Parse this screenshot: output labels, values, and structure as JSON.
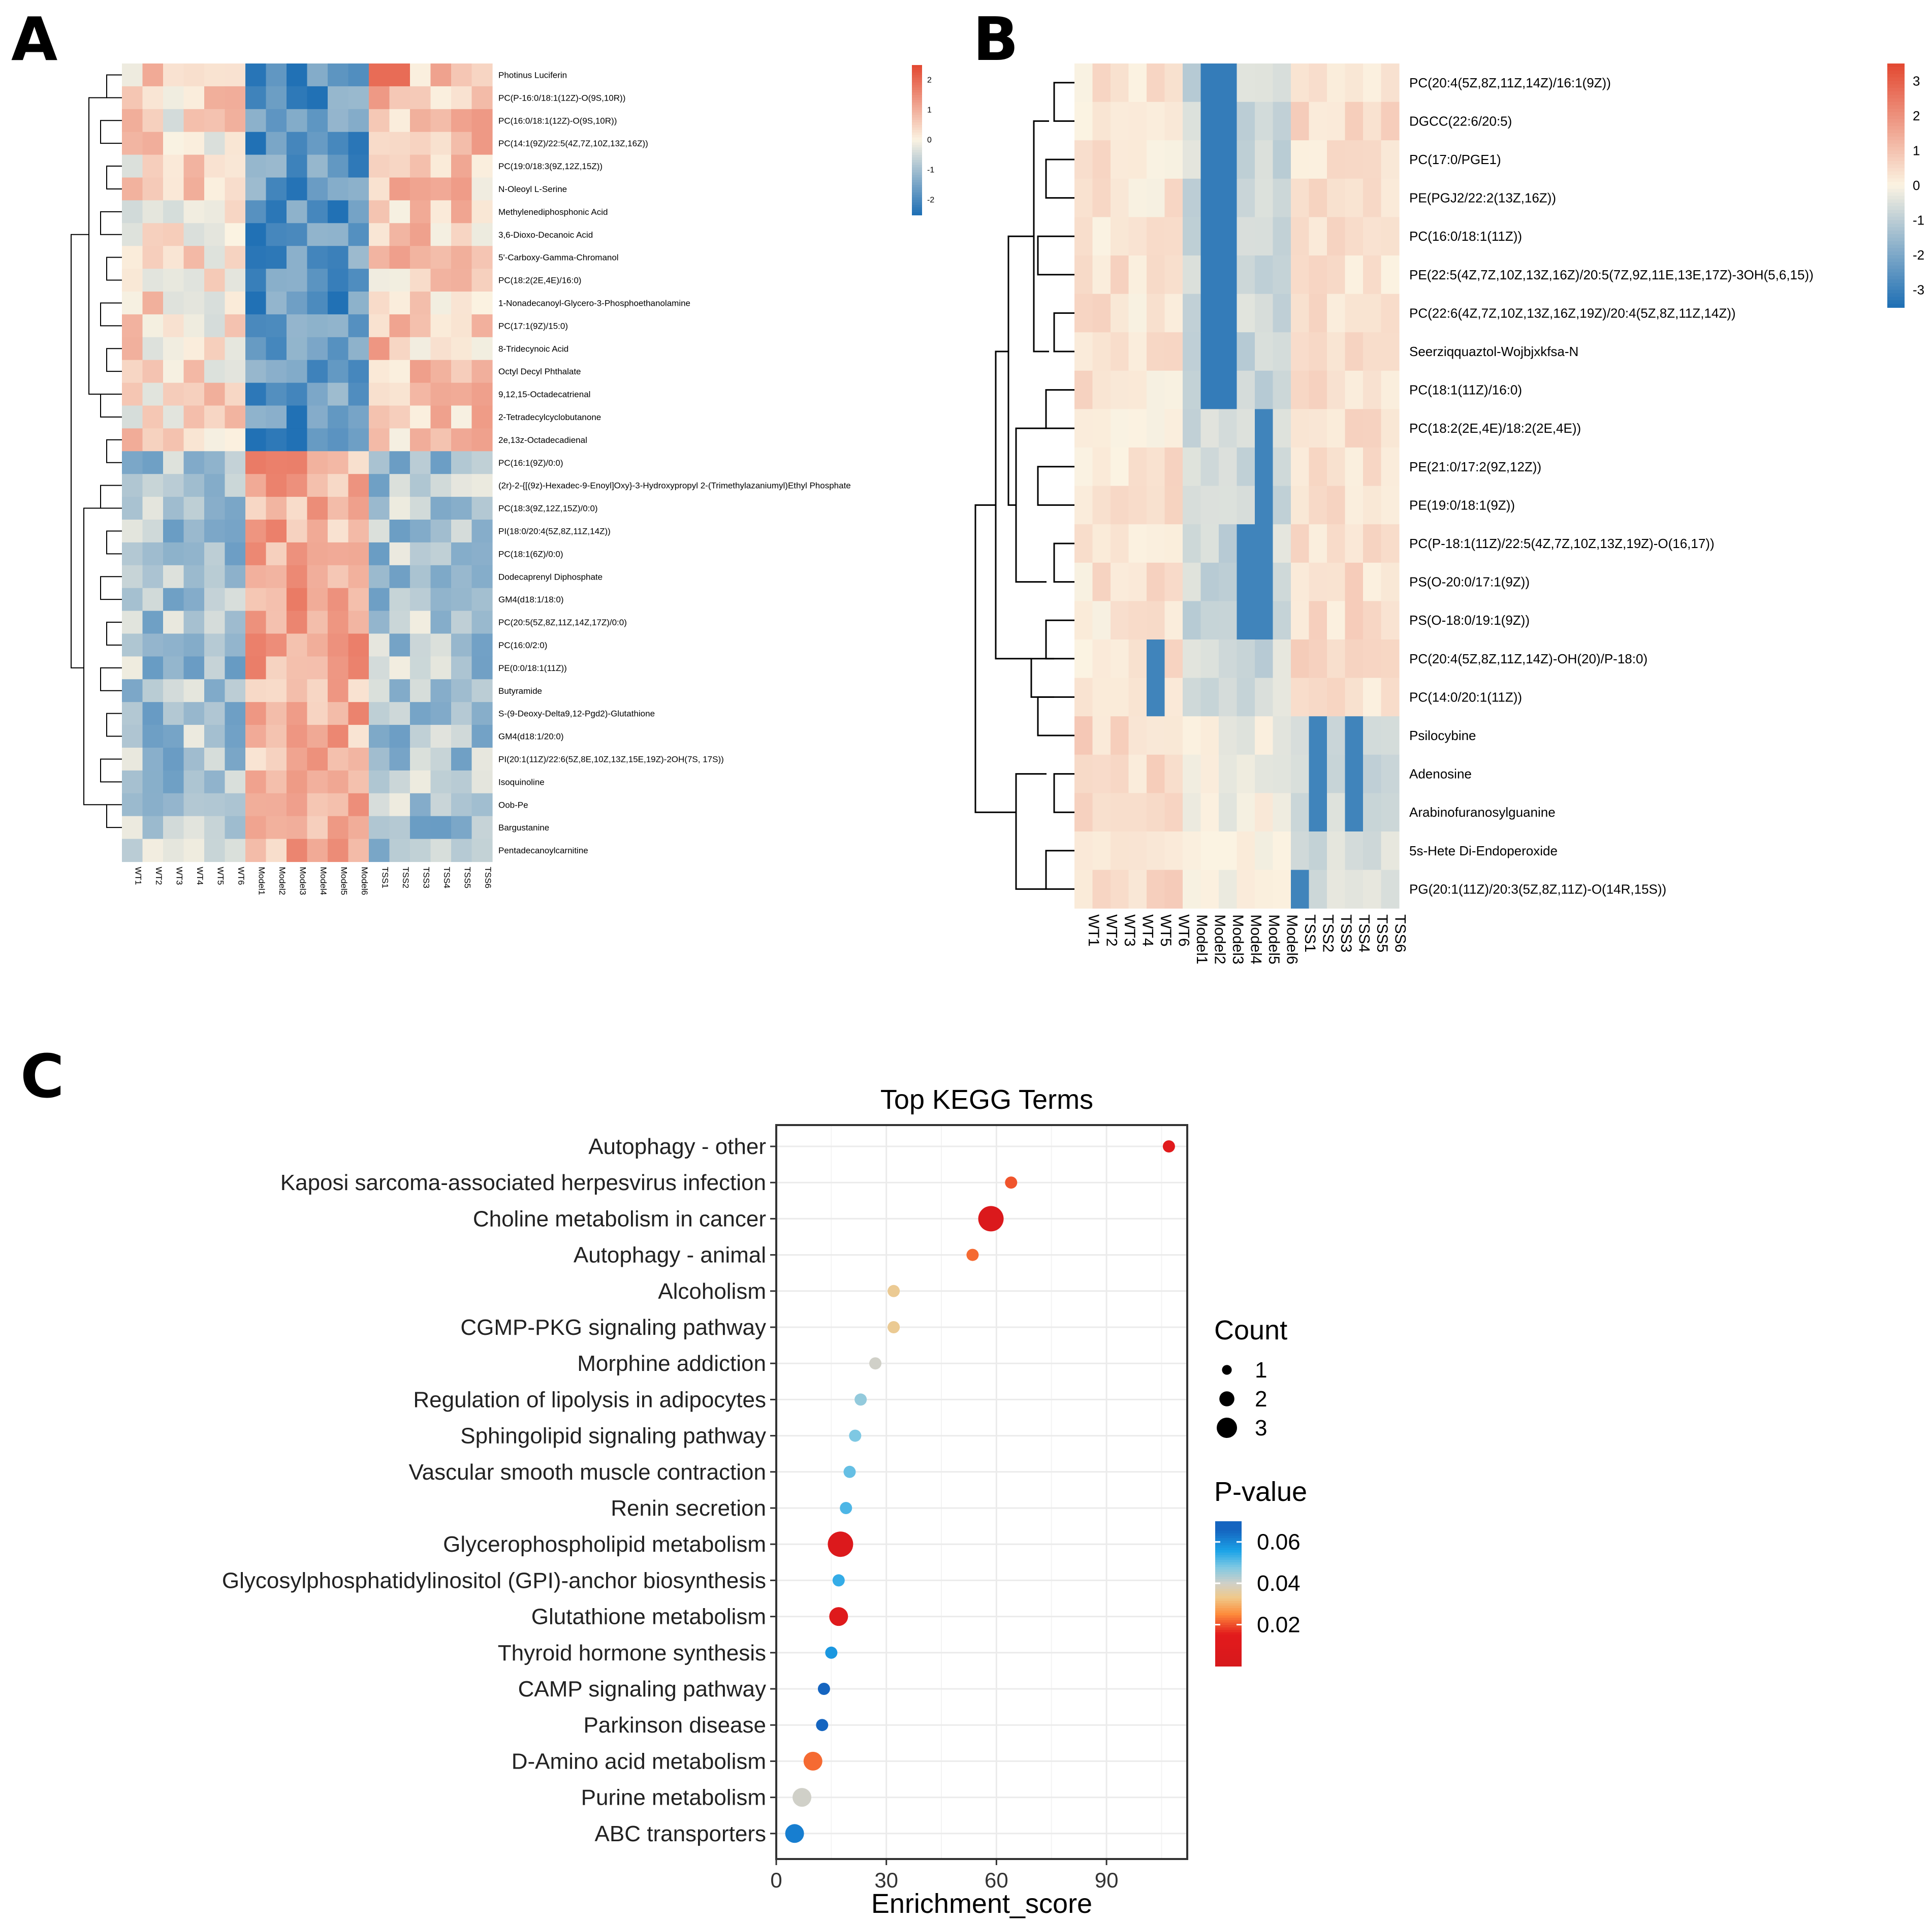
{
  "panels": {
    "a": "A",
    "b": "B",
    "c": "C"
  },
  "colors": {
    "low": "#2171b5",
    "mid": "#fbf3e2",
    "high": "#e34a33",
    "gridline": "#ebebeb",
    "tree": "#000000"
  },
  "chart_data": [
    {
      "type": "heatmap",
      "panel": "A",
      "columns": [
        "WT1",
        "WT2",
        "WT3",
        "WT4",
        "WT5",
        "WT6",
        "Model1",
        "Model2",
        "Model3",
        "Model4",
        "Model5",
        "Model6",
        "TSS1",
        "TSS2",
        "TSS3",
        "TSS4",
        "TSS5",
        "TSS6"
      ],
      "rows": [
        "Photinus Luciferin",
        "PC(P-16:0/18:1(12Z)-O(9S,10R))",
        "PC(16:0/18:1(12Z)-O(9S,10R))",
        "PC(14:1(9Z)/22:5(4Z,7Z,10Z,13Z,16Z))",
        "PC(19:0/18:3(9Z,12Z,15Z))",
        "N-Oleoyl L-Serine",
        "Methylenediphosphonic Acid",
        "3,6-Dioxo-Decanoic Acid",
        "5'-Carboxy-Gamma-Chromanol",
        "PC(18:2(2E,4E)/16:0)",
        "1-Nonadecanoyl-Glycero-3-Phosphoethanolamine",
        "PC(17:1(9Z)/15:0)",
        "8-Tridecynoic Acid",
        "Octyl Decyl Phthalate",
        "9,12,15-Octadecatrienal",
        "2-Tetradecylcyclobutanone",
        "2e,13z-Octadecadienal",
        "PC(16:1(9Z)/0:0)",
        "(2r)-2-{[(9z)-Hexadec-9-Enoyl]Oxy}-3-Hydroxypropyl 2-(Trimethylazaniumyl)Ethyl Phosphate",
        "PC(18:3(9Z,12Z,15Z)/0:0)",
        "PI(18:0/20:4(5Z,8Z,11Z,14Z))",
        "PC(18:1(6Z)/0:0)",
        "Dodecaprenyl Diphosphate",
        "GM4(d18:1/18:0)",
        "PC(20:5(5Z,8Z,11Z,14Z,17Z)/0:0)",
        "PC(16:0/2:0)",
        "PE(0:0/18:1(11Z))",
        "Butyramide",
        "S-(9-Deoxy-Delta9,12-Pgd2)-Glutathione",
        "GM4(d18:1/20:0)",
        "PI(20:1(11Z)/22:6(5Z,8E,10Z,13Z,15E,19Z)-2OH(7S, 17S))",
        "Isoquinoline",
        "Oob-Pe",
        "Bargustanine",
        "Pentadecanoylcarnitine"
      ],
      "groups": {
        "top_rows": 17,
        "bottom_rows": 18
      },
      "values_top_pattern": {
        "WT": 0.3,
        "Model": -1.8,
        "TSS": 0.6
      },
      "values_bottom_pattern": {
        "WT": -0.9,
        "Model": 1.0,
        "TSS": -0.9
      },
      "colorbar": {
        "ticks": [
          "2",
          "1",
          "0",
          "-1",
          "-2"
        ],
        "range": [
          -2.5,
          2.5
        ]
      }
    },
    {
      "type": "heatmap",
      "panel": "B",
      "columns": [
        "WT1",
        "WT2",
        "WT3",
        "WT4",
        "WT5",
        "WT6",
        "Model1",
        "Model2",
        "Model3",
        "Model4",
        "Model5",
        "Model6",
        "TSS1",
        "TSS2",
        "TSS3",
        "TSS4",
        "TSS5",
        "TSS6"
      ],
      "rows": [
        "PC(20:4(5Z,8Z,11Z,14Z)/16:1(9Z))",
        "DGCC(22:6/20:5)",
        "PC(17:0/PGE1)",
        "PE(PGJ2/22:2(13Z,16Z))",
        "PC(16:0/18:1(11Z))",
        "PE(22:5(4Z,7Z,10Z,13Z,16Z)/20:5(7Z,9Z,11E,13E,17Z)-3OH(5,6,15))",
        "PC(22:6(4Z,7Z,10Z,13Z,16Z,19Z)/20:4(5Z,8Z,11Z,14Z))",
        "Seerziqquaztol-Wojbjxkfsa-N",
        "PC(18:1(11Z)/16:0)",
        "PC(18:2(2E,4E)/18:2(2E,4E))",
        "PE(21:0/17:2(9Z,12Z))",
        "PE(19:0/18:1(9Z))",
        "PC(P-18:1(11Z)/22:5(4Z,7Z,10Z,13Z,19Z)-O(16,17))",
        "PS(O-20:0/17:1(9Z))",
        "PS(O-18:0/19:1(9Z))",
        "PC(20:4(5Z,8Z,11Z,14Z)-OH(20)/P-18:0)",
        "PC(14:0/20:1(11Z))",
        "Psilocybine",
        "Adenosine",
        "Arabinofuranosylguanine",
        "5s-Hete Di-Endoperoxide",
        "PG(20:1(11Z)/20:3(5Z,8Z,11Z)-O(14R,15S))"
      ],
      "colorbar": {
        "ticks": [
          "3",
          "2",
          "1",
          "0",
          "-1",
          "-2",
          "-3"
        ],
        "range": [
          -3.5,
          3.5
        ]
      }
    },
    {
      "type": "scatter",
      "panel": "C",
      "title": "Top KEGG Terms",
      "xlabel": "Enrichment_score",
      "ylabel": "",
      "xlim": [
        0,
        112
      ],
      "xticks": [
        0,
        30,
        60,
        90
      ],
      "terms": [
        {
          "name": "Autophagy - other",
          "x": 107,
          "count": 1,
          "p": 0.012
        },
        {
          "name": "Kaposi sarcoma-associated herpesvirus infection",
          "x": 64,
          "count": 1,
          "p": 0.02
        },
        {
          "name": "Choline metabolism in cancer",
          "x": 58.5,
          "count": 3,
          "p": 0.005
        },
        {
          "name": "Autophagy - animal",
          "x": 53.5,
          "count": 1,
          "p": 0.022
        },
        {
          "name": "Alcoholism",
          "x": 32,
          "count": 1,
          "p": 0.034
        },
        {
          "name": "CGMP-PKG signaling pathway",
          "x": 32,
          "count": 1,
          "p": 0.034
        },
        {
          "name": "Morphine addiction",
          "x": 27,
          "count": 1,
          "p": 0.04
        },
        {
          "name": "Regulation of lipolysis in adipocytes",
          "x": 23,
          "count": 1,
          "p": 0.046
        },
        {
          "name": "Sphingolipid signaling pathway",
          "x": 21.5,
          "count": 1,
          "p": 0.048
        },
        {
          "name": "Vascular smooth muscle contraction",
          "x": 20,
          "count": 1,
          "p": 0.05
        },
        {
          "name": "Renin secretion",
          "x": 19,
          "count": 1,
          "p": 0.052
        },
        {
          "name": "Glycerophospholipid metabolism",
          "x": 17.5,
          "count": 3,
          "p": 0.006
        },
        {
          "name": "Glycosylphosphatidylinositol (GPI)-anchor biosynthesis",
          "x": 17,
          "count": 1,
          "p": 0.054
        },
        {
          "name": "Glutathione metabolism",
          "x": 17,
          "count": 2,
          "p": 0.01
        },
        {
          "name": "Thyroid hormone synthesis",
          "x": 15,
          "count": 1,
          "p": 0.058
        },
        {
          "name": "CAMP signaling pathway",
          "x": 13,
          "count": 1,
          "p": 0.066
        },
        {
          "name": "Parkinson disease",
          "x": 12.5,
          "count": 1,
          "p": 0.068
        },
        {
          "name": "D-Amino acid metabolism",
          "x": 10,
          "count": 2,
          "p": 0.022
        },
        {
          "name": "Purine metabolism",
          "x": 7,
          "count": 2,
          "p": 0.04
        },
        {
          "name": "ABC transporters",
          "x": 5,
          "count": 2,
          "p": 0.062
        }
      ],
      "legend_count": {
        "title": "Count",
        "values": [
          1,
          2,
          3
        ]
      },
      "legend_p": {
        "title": "P-value",
        "ticks": [
          "0.06",
          "0.04",
          "0.02"
        ],
        "range": [
          0.0,
          0.07
        ]
      }
    }
  ]
}
